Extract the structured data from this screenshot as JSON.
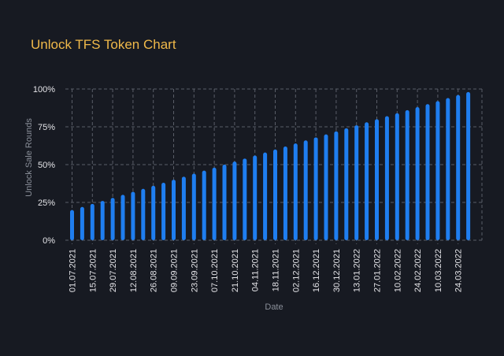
{
  "chart_data": {
    "type": "bar",
    "title": "Unlock TFS Token Chart",
    "xlabel": "Date",
    "ylabel": "Unlock Sale Rounds",
    "ylim": [
      0,
      100
    ],
    "grid": true,
    "y_ticks": [
      "0%",
      "25%",
      "50%",
      "75%",
      "100%"
    ],
    "x_tick_labels": [
      "01.07.2021",
      "15.07.2021",
      "29.07.2021",
      "12.08.2021",
      "26.08.2021",
      "09.09.2021",
      "23.09.2021",
      "07.10.2021",
      "21.10.2021",
      "04.11.2021",
      "18.11.2021",
      "02.12.2021",
      "16.12.2021",
      "30.12.2021",
      "13.01.2022",
      "27.01.2022",
      "10.02.2022",
      "24.02.2022",
      "10.03.2022",
      "24.03.2022"
    ],
    "bars_per_tick": 2,
    "values": [
      20,
      22,
      24,
      26,
      28,
      30,
      32,
      34,
      36,
      38,
      40,
      42,
      44,
      46,
      48,
      50,
      52,
      54,
      56,
      58,
      60,
      62,
      64,
      66,
      68,
      70,
      72,
      74,
      76,
      78,
      80,
      82,
      84,
      86,
      88,
      90,
      92,
      94,
      96,
      98
    ],
    "bar_color": "#1f7ef0"
  },
  "colors": {
    "grid": "#5a5e68",
    "bar": "#1f7ef0",
    "title": "#f0b94a"
  }
}
